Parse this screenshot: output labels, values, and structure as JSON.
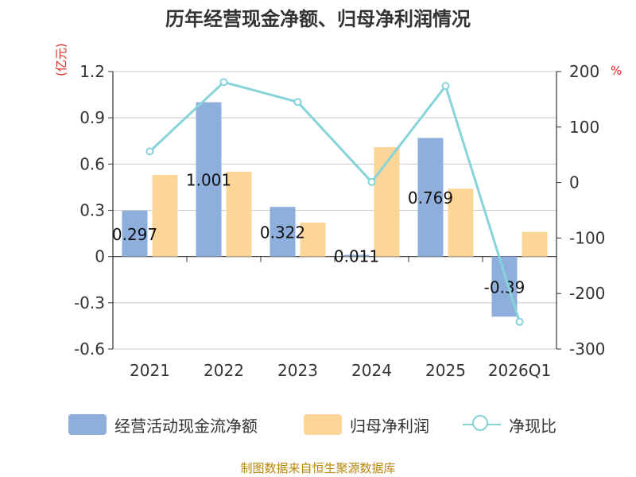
{
  "chart_data": {
    "type": "bar",
    "title": "历年经营现金净额、归母净利润情况",
    "categories": [
      "2021",
      "2022",
      "2023",
      "2024",
      "2025",
      "2026Q1"
    ],
    "y_left": {
      "unit": "(亿元)",
      "ylim": [
        -0.6,
        1.2
      ],
      "ticks": [
        "1.2",
        "0.9",
        "0.6",
        "0.3",
        "0",
        "-0.3",
        "-0.6"
      ],
      "tick_values": [
        1.2,
        0.9,
        0.6,
        0.3,
        0,
        -0.3,
        -0.6
      ]
    },
    "y_right": {
      "unit": "%",
      "ylim": [
        -300,
        200
      ],
      "ticks": [
        "200",
        "100",
        "0",
        "-100",
        "-200",
        "-300"
      ],
      "tick_values": [
        200,
        100,
        0,
        -100,
        -200,
        -300
      ]
    },
    "series": [
      {
        "name": "经营活动现金流净额",
        "kind": "bar",
        "axis": "left",
        "color": "#8eaedc",
        "values": [
          0.297,
          1.001,
          0.322,
          0.011,
          0.769,
          -0.39
        ],
        "labels": [
          "0.297",
          "1.001",
          "0.322",
          "0.011",
          "0.769",
          "-0.39"
        ]
      },
      {
        "name": "归母净利润",
        "kind": "bar",
        "axis": "left",
        "color": "#fdd697",
        "values": [
          0.53,
          0.55,
          0.22,
          0.71,
          0.44,
          0.16
        ]
      },
      {
        "name": "净现比",
        "kind": "line",
        "axis": "right",
        "color": "#86d3d9",
        "values": [
          56,
          181,
          145,
          1,
          174,
          -251
        ]
      }
    ],
    "grid": true,
    "legend_position": "bottom"
  },
  "source_text": "制图数据来自恒生聚源数据库"
}
